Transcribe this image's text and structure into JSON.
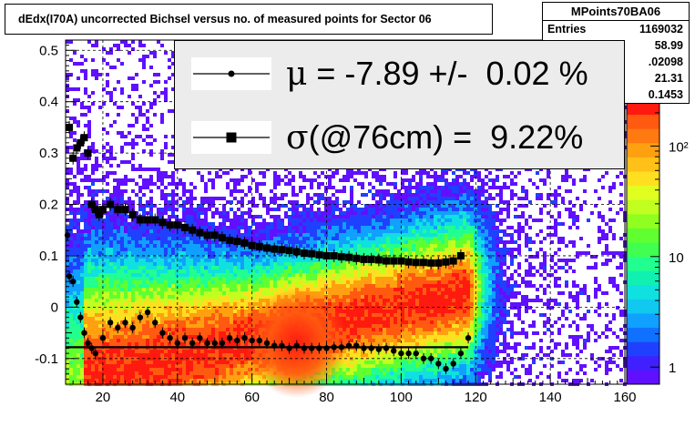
{
  "title": "dEdx(I70A) uncorrected Bichsel versus no. of measured points for Sector 06",
  "stats": {
    "name": "MPoints70BA06",
    "rows": [
      {
        "label": "Entries",
        "value": "1169032"
      },
      {
        "label": "",
        "value": "58.99"
      },
      {
        "label": "",
        "value": ".02098"
      },
      {
        "label": "",
        "value": "21.31"
      },
      {
        "label": "",
        "value": "0.1453"
      }
    ]
  },
  "legend": {
    "mu_text": " = -7.89 +/-  0.02 %",
    "sigma_text": "(@76cm) =  9.22%",
    "mu_symbol": "μ",
    "sigma_symbol": "σ"
  },
  "colors": {
    "line": "#000000",
    "box_bg": "#ececec",
    "grid": "#000000"
  },
  "chart_data": {
    "type": "heatmap",
    "title": "dEdx(I70A) uncorrected Bichsel versus no. of measured points for Sector 06",
    "xlim": [
      10,
      160
    ],
    "ylim": [
      -0.15,
      0.52
    ],
    "x_ticks": [
      20,
      40,
      60,
      80,
      100,
      120,
      140,
      160
    ],
    "y_ticks": [
      -0.1,
      0,
      0.1,
      0.2,
      0.3,
      0.4,
      0.5
    ],
    "y_tick_labels": [
      "-0.1",
      "0",
      "0.1",
      "0.2",
      "0.3",
      "0.4",
      "0.5"
    ],
    "z_scale": "log",
    "z_ticks": [
      1,
      10,
      100
    ],
    "z_tick_labels": [
      "1",
      "10",
      "10²"
    ],
    "grid": true,
    "series": [
      {
        "name": "sigma",
        "marker": "square",
        "x": [
          11,
          12,
          13,
          14,
          15,
          16,
          17,
          18,
          19,
          20,
          22,
          24,
          26,
          28,
          30,
          32,
          34,
          36,
          38,
          40,
          42,
          44,
          46,
          48,
          50,
          52,
          54,
          56,
          58,
          60,
          62,
          64,
          66,
          68,
          70,
          72,
          74,
          76,
          78,
          80,
          82,
          84,
          86,
          88,
          90,
          92,
          94,
          96,
          98,
          100,
          102,
          104,
          106,
          108,
          110,
          112,
          114,
          116
        ],
        "y": [
          0.35,
          0.29,
          0.31,
          0.32,
          0.33,
          0.3,
          0.2,
          0.19,
          0.18,
          0.19,
          0.2,
          0.19,
          0.19,
          0.18,
          0.17,
          0.17,
          0.17,
          0.165,
          0.16,
          0.16,
          0.155,
          0.15,
          0.145,
          0.14,
          0.14,
          0.135,
          0.13,
          0.128,
          0.125,
          0.12,
          0.118,
          0.115,
          0.113,
          0.112,
          0.11,
          0.108,
          0.105,
          0.104,
          0.102,
          0.1,
          0.1,
          0.098,
          0.097,
          0.095,
          0.093,
          0.093,
          0.092,
          0.09,
          0.09,
          0.09,
          0.088,
          0.087,
          0.087,
          0.086,
          0.086,
          0.088,
          0.09,
          0.1
        ]
      },
      {
        "name": "mu",
        "marker": "dot",
        "x": [
          10.5,
          11,
          12,
          13,
          14,
          15,
          16,
          17,
          18,
          20,
          22,
          24,
          26,
          28,
          30,
          32,
          34,
          36,
          38,
          40,
          42,
          44,
          46,
          48,
          50,
          52,
          54,
          56,
          58,
          60,
          62,
          64,
          66,
          68,
          70,
          72,
          74,
          76,
          78,
          80,
          82,
          84,
          86,
          88,
          90,
          92,
          94,
          96,
          98,
          100,
          102,
          104,
          106,
          108,
          110,
          112,
          114,
          116,
          118
        ],
        "y": [
          0.14,
          0.06,
          0.05,
          0.01,
          -0.02,
          -0.05,
          -0.07,
          -0.08,
          -0.09,
          -0.06,
          -0.03,
          -0.04,
          -0.03,
          -0.04,
          -0.02,
          -0.01,
          -0.03,
          -0.05,
          -0.06,
          -0.07,
          -0.06,
          -0.07,
          -0.06,
          -0.07,
          -0.07,
          -0.07,
          -0.06,
          -0.065,
          -0.06,
          -0.065,
          -0.065,
          -0.07,
          -0.075,
          -0.075,
          -0.08,
          -0.075,
          -0.08,
          -0.08,
          -0.08,
          -0.08,
          -0.078,
          -0.078,
          -0.075,
          -0.075,
          -0.08,
          -0.08,
          -0.082,
          -0.08,
          -0.085,
          -0.09,
          -0.09,
          -0.09,
          -0.1,
          -0.1,
          -0.11,
          -0.12,
          -0.11,
          -0.09,
          -0.06
        ]
      }
    ],
    "hline": {
      "y": -0.078,
      "x": [
        10,
        118
      ]
    }
  }
}
